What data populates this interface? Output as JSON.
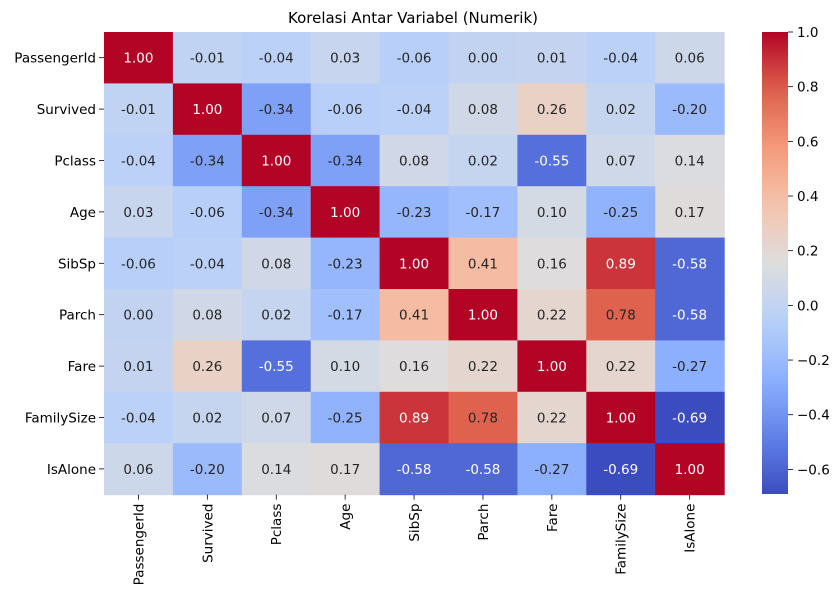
{
  "chart_data": {
    "type": "heatmap",
    "title": "Korelasi Antar Variabel (Numerik)",
    "xlabel": "",
    "ylabel": "",
    "row_labels": [
      "PassengerId",
      "Survived",
      "Pclass",
      "Age",
      "SibSp",
      "Parch",
      "Fare",
      "FamilySize",
      "IsAlone"
    ],
    "col_labels": [
      "PassengerId",
      "Survived",
      "Pclass",
      "Age",
      "SibSp",
      "Parch",
      "Fare",
      "FamilySize",
      "IsAlone"
    ],
    "values": [
      [
        1.0,
        -0.01,
        -0.04,
        0.03,
        -0.06,
        -0.0,
        0.01,
        -0.04,
        0.06
      ],
      [
        -0.01,
        1.0,
        -0.34,
        -0.06,
        -0.04,
        0.08,
        0.26,
        0.02,
        -0.2
      ],
      [
        -0.04,
        -0.34,
        1.0,
        -0.34,
        0.08,
        0.02,
        -0.55,
        0.07,
        0.14
      ],
      [
        0.03,
        -0.06,
        -0.34,
        1.0,
        -0.23,
        -0.17,
        0.1,
        -0.25,
        0.17
      ],
      [
        -0.06,
        -0.04,
        0.08,
        -0.23,
        1.0,
        0.41,
        0.16,
        0.89,
        -0.58
      ],
      [
        -0.0,
        0.08,
        0.02,
        -0.17,
        0.41,
        1.0,
        0.22,
        0.78,
        -0.58
      ],
      [
        0.01,
        0.26,
        -0.55,
        0.1,
        0.16,
        0.22,
        1.0,
        0.22,
        -0.27
      ],
      [
        -0.04,
        0.02,
        0.07,
        -0.25,
        0.89,
        0.78,
        0.22,
        1.0,
        -0.69
      ],
      [
        0.06,
        -0.2,
        0.14,
        0.17,
        -0.58,
        -0.58,
        -0.27,
        -0.69,
        1.0
      ]
    ],
    "value_format": "0.00",
    "colormap": "coolwarm",
    "vmin": -0.69,
    "vmax": 1.0,
    "colorbar_ticks": [
      1.0,
      0.8,
      0.6,
      0.4,
      0.2,
      0.0,
      -0.2,
      -0.4,
      -0.6
    ],
    "colorbar_tick_labels": [
      "1.0",
      "0.8",
      "0.6",
      "0.4",
      "0.2",
      "0.0",
      "−0.2",
      "−0.4",
      "−0.6"
    ],
    "grid": false,
    "legend": "colorbar-right"
  }
}
